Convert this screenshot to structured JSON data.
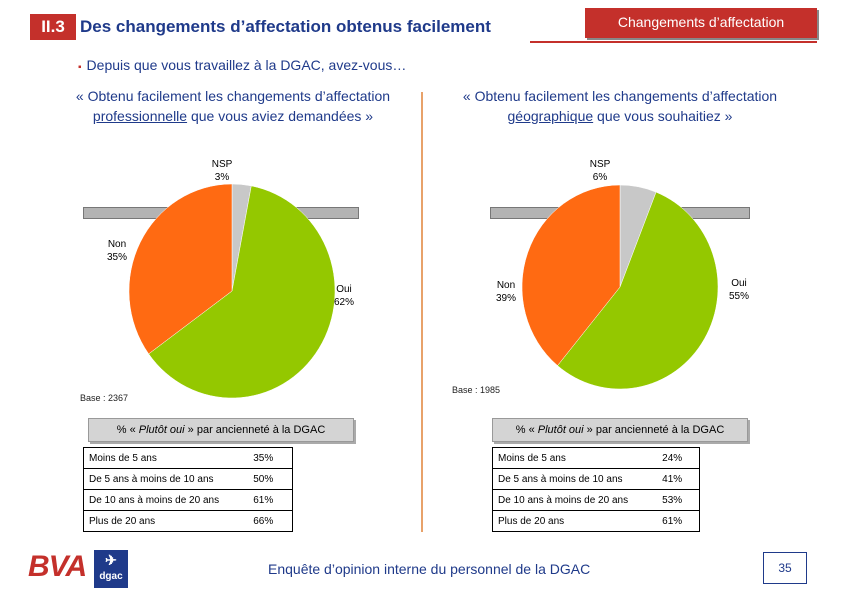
{
  "header": {
    "section_number": "II.3",
    "title": "Des changements d’affectation obtenus facilement",
    "badge": "Changements d’affectation"
  },
  "question": {
    "bullet": "▪",
    "text": "Depuis que vous travaillez à la DGAC, avez-vous…"
  },
  "left_panel": {
    "title_pre": "« Obtenu facilement les changements d’affectation ",
    "title_underlined": "professionnelle",
    "title_post": " que vous aviez demandées »",
    "labels": {
      "nsp": "NSP",
      "nsp_pct": "3%",
      "non": "Non",
      "non_pct": "35%",
      "oui": "Oui",
      "oui_pct": "62%"
    },
    "base": "Base : 2367",
    "table_header_pre": "% « ",
    "table_header_em": "Plutôt oui",
    "table_header_post": " » par ancienneté à la DGAC",
    "rows": [
      {
        "label": "Moins de 5 ans",
        "value": "35%"
      },
      {
        "label": "De 5 ans à moins de 10 ans",
        "value": "50%"
      },
      {
        "label": "De 10 ans à moins de 20 ans",
        "value": "61%"
      },
      {
        "label": "Plus de 20 ans",
        "value": "66%"
      }
    ]
  },
  "right_panel": {
    "title_pre": "« Obtenu facilement les changements d’affectation ",
    "title_underlined": "géographique",
    "title_post": " que vous souhaitiez »",
    "labels": {
      "nsp": "NSP",
      "nsp_pct": "6%",
      "non": "Non",
      "non_pct": "39%",
      "oui": "Oui",
      "oui_pct": "55%"
    },
    "base": "Base : 1985",
    "table_header_pre": "% « ",
    "table_header_em": "Plutôt oui",
    "table_header_post": " » par ancienneté à la DGAC",
    "rows": [
      {
        "label": "Moins de 5 ans",
        "value": "24%"
      },
      {
        "label": "De 5 ans à moins de 10 ans",
        "value": "41%"
      },
      {
        "label": "De 10 ans à moins de 20 ans",
        "value": "53%"
      },
      {
        "label": "Plus de 20 ans",
        "value": "61%"
      }
    ]
  },
  "chart_data": [
    {
      "type": "pie",
      "title": "« Obtenu facilement les changements d’affectation professionnelle que vous aviez demandées »",
      "categories": [
        "Oui",
        "Non",
        "NSP"
      ],
      "values": [
        62,
        35,
        3
      ],
      "colors": [
        "#94c800",
        "#ff6a12",
        "#c8c8c8"
      ],
      "base": "Base : 2367"
    },
    {
      "type": "pie",
      "title": "« Obtenu facilement les changements d’affectation géographique que vous souhaitiez »",
      "categories": [
        "Oui",
        "Non",
        "NSP"
      ],
      "values": [
        55,
        39,
        6
      ],
      "colors": [
        "#94c800",
        "#ff6a12",
        "#c8c8c8"
      ],
      "base": "Base : 1985"
    }
  ],
  "footer": {
    "brand": "BVA",
    "logo_text": "dgac",
    "logo_icon": "plane-icon",
    "survey": "Enquête d’opinion interne du personnel de la DGAC",
    "page": "35"
  }
}
